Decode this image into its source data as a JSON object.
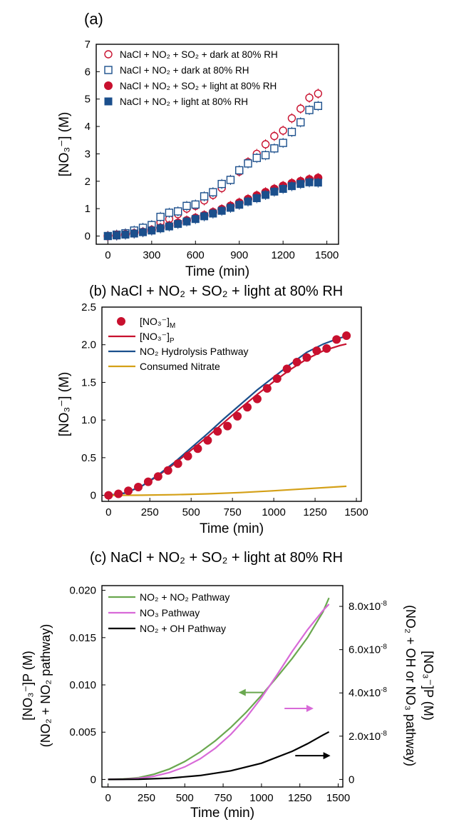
{
  "figure": {
    "panel_a_label": "(a)",
    "panel_b_title": "(b) NaCl + NO₂ + SO₂ + light at 80% RH",
    "panel_c_title": "(c) NaCl + NO₂ + SO₂ + light at 80% RH"
  },
  "chart_data": [
    {
      "type": "scatter",
      "panel": "(a)",
      "xlabel": "Time (min)",
      "ylabel": "[NO₃⁻] (M)",
      "xlim": [
        -80,
        1580
      ],
      "ylim": [
        -0.3,
        7
      ],
      "xticks": [
        0,
        300,
        600,
        900,
        1200,
        1500
      ],
      "yticks": [
        0,
        1,
        2,
        3,
        4,
        5,
        6,
        7
      ],
      "legend_position": "top-left",
      "series": [
        {
          "name": "NaCl + NO₂ + SO₂ + dark at 80% RH",
          "marker": "circle-open",
          "color": "#c8102e",
          "x": [
            0,
            60,
            120,
            180,
            240,
            300,
            360,
            420,
            480,
            540,
            600,
            660,
            720,
            780,
            840,
            900,
            960,
            1020,
            1080,
            1140,
            1200,
            1260,
            1320,
            1380,
            1440
          ],
          "y": [
            0.0,
            0.03,
            0.08,
            0.15,
            0.25,
            0.35,
            0.5,
            0.62,
            0.8,
            1.0,
            1.1,
            1.3,
            1.5,
            1.75,
            2.05,
            2.35,
            2.7,
            3.0,
            3.35,
            3.65,
            3.85,
            4.3,
            4.65,
            5.05,
            5.2
          ]
        },
        {
          "name": "NaCl + NO₂ + dark at 80% RH",
          "marker": "square-open",
          "color": "#1b4f8c",
          "x": [
            0,
            60,
            120,
            180,
            240,
            300,
            360,
            420,
            480,
            540,
            600,
            660,
            720,
            780,
            840,
            900,
            960,
            1020,
            1080,
            1140,
            1200,
            1260,
            1320,
            1380,
            1440
          ],
          "y": [
            0.0,
            0.05,
            0.1,
            0.2,
            0.3,
            0.4,
            0.7,
            0.85,
            0.9,
            1.1,
            1.15,
            1.45,
            1.6,
            1.9,
            2.05,
            2.4,
            2.65,
            2.85,
            2.95,
            3.2,
            3.4,
            3.8,
            4.15,
            4.6,
            4.75
          ]
        },
        {
          "name": "NaCl + NO₂ + SO₂ + light at 80% RH",
          "marker": "circle-filled",
          "color": "#c8102e",
          "x": [
            0,
            60,
            120,
            180,
            240,
            300,
            360,
            420,
            480,
            540,
            600,
            660,
            720,
            780,
            840,
            900,
            960,
            1020,
            1080,
            1140,
            1200,
            1260,
            1320,
            1380,
            1440
          ],
          "y": [
            0.0,
            0.03,
            0.06,
            0.1,
            0.15,
            0.22,
            0.3,
            0.38,
            0.48,
            0.57,
            0.66,
            0.76,
            0.87,
            0.98,
            1.1,
            1.22,
            1.35,
            1.48,
            1.6,
            1.72,
            1.83,
            1.93,
            2.0,
            2.07,
            2.12
          ]
        },
        {
          "name": "NaCl + NO₂ + light at 80% RH",
          "marker": "square-filled",
          "color": "#1b4f8c",
          "x": [
            0,
            60,
            120,
            180,
            240,
            300,
            360,
            420,
            480,
            540,
            600,
            660,
            720,
            780,
            840,
            900,
            960,
            1020,
            1080,
            1140,
            1200,
            1260,
            1320,
            1380,
            1440
          ],
          "y": [
            0.0,
            0.02,
            0.05,
            0.09,
            0.14,
            0.2,
            0.28,
            0.35,
            0.44,
            0.53,
            0.62,
            0.72,
            0.82,
            0.92,
            1.03,
            1.14,
            1.26,
            1.38,
            1.5,
            1.62,
            1.72,
            1.82,
            1.9,
            1.96,
            1.95
          ]
        }
      ]
    },
    {
      "type": "line",
      "panel": "(b)",
      "xlabel": "Time (min)",
      "ylabel": "[NO₃⁻] (M)",
      "xlim": [
        -40,
        1530
      ],
      "ylim": [
        -0.08,
        2.5
      ],
      "xticks": [
        0,
        250,
        500,
        750,
        1000,
        1250,
        1500
      ],
      "yticks": [
        0,
        0.5,
        1.0,
        1.5,
        2.0,
        2.5
      ],
      "ytick_labels": [
        "0",
        "0.5",
        "1.0",
        "1.5",
        "2.0",
        "2.5"
      ],
      "legend_position": "top-left",
      "legend_labels": [
        "[NO₃⁻]M",
        "[NO₃⁻]P",
        "NO₂ Hydrolysis Pathway",
        "Consumed Nitrate"
      ],
      "series": [
        {
          "name": "[NO₃⁻]M",
          "marker": "circle-filled",
          "color": "#c8102e",
          "x": [
            0,
            60,
            120,
            180,
            240,
            300,
            360,
            420,
            480,
            540,
            600,
            660,
            720,
            780,
            840,
            900,
            960,
            1020,
            1080,
            1140,
            1200,
            1260,
            1320,
            1380,
            1440
          ],
          "y": [
            0.0,
            0.02,
            0.06,
            0.11,
            0.18,
            0.25,
            0.33,
            0.42,
            0.52,
            0.62,
            0.73,
            0.85,
            0.92,
            1.05,
            1.17,
            1.28,
            1.42,
            1.55,
            1.68,
            1.77,
            1.83,
            1.92,
            1.95,
            2.07,
            2.12
          ]
        },
        {
          "name": "[NO₃⁻]P",
          "color": "#c8102e",
          "x": [
            0,
            100,
            200,
            300,
            400,
            500,
            600,
            700,
            800,
            900,
            1000,
            1100,
            1200,
            1300,
            1400,
            1440
          ],
          "y": [
            0.0,
            0.03,
            0.12,
            0.26,
            0.42,
            0.6,
            0.78,
            0.97,
            1.16,
            1.34,
            1.51,
            1.67,
            1.81,
            1.92,
            1.99,
            2.01
          ]
        },
        {
          "name": "NO₂ Hydrolysis Pathway",
          "color": "#1b4f8c",
          "x": [
            0,
            100,
            200,
            300,
            400,
            500,
            600,
            700,
            800,
            900,
            1000,
            1100,
            1200,
            1300,
            1400,
            1440
          ],
          "y": [
            0.0,
            0.03,
            0.12,
            0.27,
            0.44,
            0.63,
            0.82,
            1.02,
            1.21,
            1.4,
            1.57,
            1.74,
            1.9,
            2.01,
            2.09,
            2.11
          ]
        },
        {
          "name": "Consumed Nitrate",
          "color": "#d4a017",
          "x": [
            0,
            200,
            400,
            600,
            800,
            1000,
            1200,
            1440
          ],
          "y": [
            0.0,
            0.002,
            0.008,
            0.02,
            0.037,
            0.06,
            0.088,
            0.12
          ]
        }
      ]
    },
    {
      "type": "line",
      "panel": "(c)",
      "xlabel": "Time (min)",
      "ylabel_lines": [
        "[NO₃⁻]P (M)",
        "(NO₂ + NO₂ pathway)"
      ],
      "y2label_lines": [
        "[NO₃⁻]P (M)",
        "(NO₂ + OH or NO₃ pathway)"
      ],
      "xlim": [
        -40,
        1530
      ],
      "ylim": [
        -0.0008,
        0.0205
      ],
      "y2lim": [
        -3.5e-09,
        8.96e-08
      ],
      "xticks": [
        0,
        250,
        500,
        750,
        1000,
        1250,
        1500
      ],
      "yticks": [
        0,
        0.005,
        0.01,
        0.015,
        0.02
      ],
      "ytick_labels": [
        "0",
        "0.005",
        "0.010",
        "0.015",
        "0.020"
      ],
      "y2ticks": [
        0,
        2e-08,
        4e-08,
        6e-08,
        8e-08
      ],
      "y2tick_labels": [
        "0",
        "2.0x10",
        "4.0x10",
        "6.0x10",
        "8.0x10"
      ],
      "y2tick_exponent": "-8",
      "legend_position": "top-left",
      "series": [
        {
          "name": "NO₂ + NO₂ Pathway",
          "color": "#6aa84f",
          "axis": "left",
          "x": [
            0,
            100,
            200,
            300,
            400,
            500,
            600,
            700,
            800,
            900,
            1000,
            1100,
            1200,
            1300,
            1400,
            1440
          ],
          "y": [
            0.0,
            5e-05,
            0.0002,
            0.00055,
            0.0011,
            0.0019,
            0.0029,
            0.0041,
            0.0055,
            0.0071,
            0.0089,
            0.0108,
            0.0128,
            0.015,
            0.0177,
            0.0192
          ]
        },
        {
          "name": "NO₃ Pathway",
          "color": "#d86ad8",
          "axis": "right",
          "x": [
            0,
            100,
            200,
            300,
            400,
            500,
            600,
            700,
            800,
            900,
            1000,
            1100,
            1200,
            1300,
            1400,
            1440
          ],
          "y": [
            0.0,
            1e-10,
            5e-10,
            1.5e-09,
            3.2e-09,
            5.8e-09,
            9.5e-09,
            1.45e-08,
            2.08e-08,
            2.86e-08,
            3.78e-08,
            4.82e-08,
            5.92e-08,
            6.92e-08,
            7.8e-08,
            8.1e-08
          ]
        },
        {
          "name": "NO₂ + OH Pathway",
          "color": "#000000",
          "axis": "right",
          "x": [
            0,
            200,
            400,
            600,
            800,
            1000,
            1200,
            1300,
            1400,
            1440
          ],
          "y": [
            0.0,
            1e-10,
            6e-10,
            1.8e-09,
            4e-09,
            7.5e-09,
            1.3e-08,
            1.65e-08,
            2.05e-08,
            2.2e-08
          ]
        }
      ],
      "annotations": [
        {
          "type": "arrow",
          "direction": "left",
          "color": "#6aa84f",
          "x": [
            1010,
            860
          ],
          "y": 0.0092,
          "axis": "left"
        },
        {
          "type": "arrow",
          "direction": "right",
          "color": "#d86ad8",
          "x": [
            1150,
            1330
          ],
          "y": 3.28e-08,
          "axis": "right"
        },
        {
          "type": "arrow",
          "direction": "right",
          "color": "#000000",
          "x": [
            1220,
            1440
          ],
          "y": 1.1e-08,
          "axis": "right"
        }
      ]
    }
  ]
}
